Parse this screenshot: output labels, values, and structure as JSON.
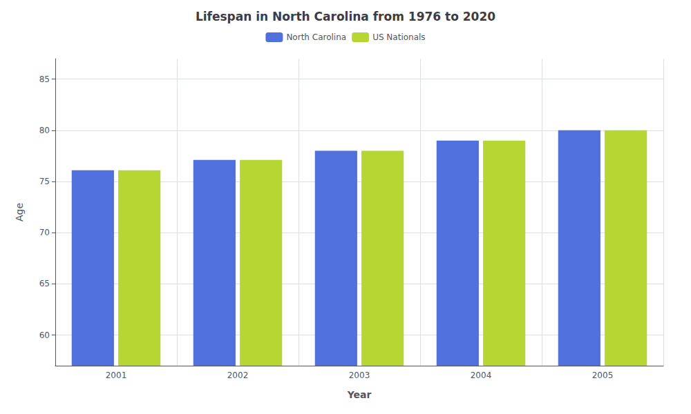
{
  "chart_data": {
    "type": "bar",
    "title": "Lifespan in North Carolina from 1976 to 2020",
    "xlabel": "Year",
    "ylabel": "Age",
    "categories": [
      "2001",
      "2002",
      "2003",
      "2004",
      "2005"
    ],
    "series": [
      {
        "name": "North Carolina",
        "values": [
          76.1,
          77.1,
          78.0,
          79.0,
          80.0
        ]
      },
      {
        "name": "US Nationals",
        "values": [
          76.1,
          77.1,
          78.0,
          79.0,
          80.0
        ]
      }
    ],
    "ylim": [
      57,
      87
    ],
    "yticks": [
      60,
      65,
      70,
      75,
      80,
      85
    ],
    "grid": true,
    "legend": "upper center"
  }
}
